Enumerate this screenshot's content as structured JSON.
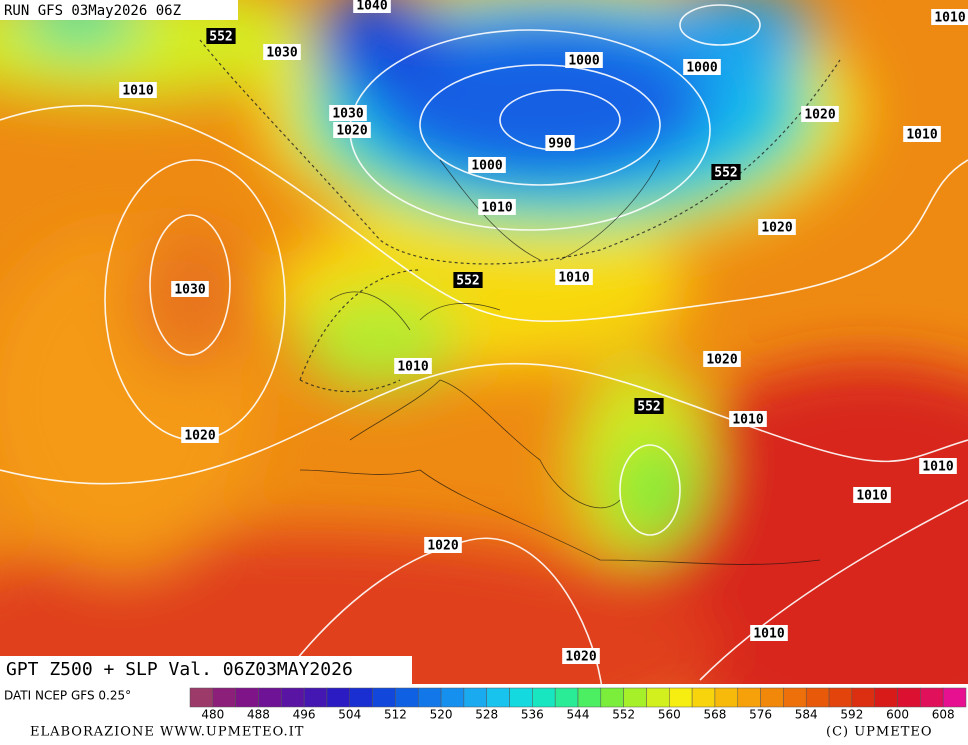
{
  "header": {
    "title": "RUN GFS 03May2026 06Z"
  },
  "map": {
    "contour_labels": [
      {
        "text": "1040",
        "kind": "slp"
      },
      {
        "text": "552",
        "kind": "gpt"
      },
      {
        "text": "1030",
        "kind": "slp"
      },
      {
        "text": "1010",
        "kind": "slp"
      },
      {
        "text": "1030",
        "kind": "slp"
      },
      {
        "text": "1020",
        "kind": "slp"
      },
      {
        "text": "1000",
        "kind": "slp"
      },
      {
        "text": "1000",
        "kind": "slp"
      },
      {
        "text": "1010",
        "kind": "slp"
      },
      {
        "text": "990",
        "kind": "slp"
      },
      {
        "text": "1000",
        "kind": "slp"
      },
      {
        "text": "1020",
        "kind": "slp"
      },
      {
        "text": "1010",
        "kind": "slp"
      },
      {
        "text": "552",
        "kind": "gpt"
      },
      {
        "text": "1010",
        "kind": "slp"
      },
      {
        "text": "1020",
        "kind": "slp"
      },
      {
        "text": "1030",
        "kind": "slp"
      },
      {
        "text": "552",
        "kind": "gpt"
      },
      {
        "text": "1010",
        "kind": "slp"
      },
      {
        "text": "1020",
        "kind": "slp"
      },
      {
        "text": "1010",
        "kind": "slp"
      },
      {
        "text": "552",
        "kind": "gpt"
      },
      {
        "text": "1010",
        "kind": "slp"
      },
      {
        "text": "1020",
        "kind": "slp"
      },
      {
        "text": "1010",
        "kind": "slp"
      },
      {
        "text": "1010",
        "kind": "slp"
      },
      {
        "text": "1020",
        "kind": "slp"
      },
      {
        "text": "1010",
        "kind": "slp"
      },
      {
        "text": "1020",
        "kind": "slp"
      }
    ]
  },
  "footer": {
    "title": "GPT Z500 + SLP Val. 06Z03MAY2026",
    "source": "DATI NCEP GFS 0.25°",
    "credit": "ELABORAZIONE WWW.UPMETEO.IT",
    "copyright": "(C) UPMETEO"
  },
  "colorbar": {
    "labels": [
      "480",
      "488",
      "496",
      "504",
      "512",
      "520",
      "528",
      "536",
      "544",
      "552",
      "560",
      "568",
      "576",
      "584",
      "592",
      "600",
      "608"
    ],
    "colors": [
      "#9c3a6a",
      "#8c1f7a",
      "#7f1489",
      "#6e1296",
      "#5a14a4",
      "#4416b2",
      "#2a1bc2",
      "#1a2fd2",
      "#1247dc",
      "#1060e4",
      "#1278ea",
      "#1690ee",
      "#1aaaf0",
      "#18c4ee",
      "#14dae0",
      "#18e6c0",
      "#2aec96",
      "#4cee62",
      "#7aee3a",
      "#a6f02a",
      "#d2f01e",
      "#f6ee10",
      "#f8d40c",
      "#f8ba0a",
      "#f6a00a",
      "#f2880a",
      "#ee700a",
      "#e85a0a",
      "#e2440c",
      "#dc2e10",
      "#d81a18",
      "#dc1030",
      "#e0105a",
      "#e61090"
    ]
  }
}
